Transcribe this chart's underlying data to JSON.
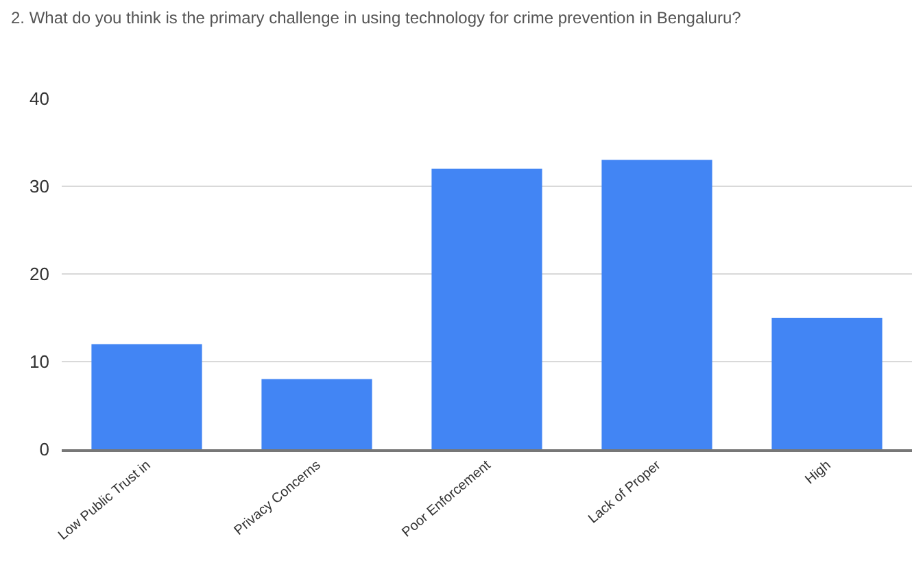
{
  "chart_data": {
    "type": "bar",
    "title": "2. What do you think is the primary challenge in using technology for crime prevention in Bengaluru?",
    "categories": [
      "Low Public Trust in",
      "Privacy Concerns",
      "Poor Enforcement",
      "Lack of Proper",
      "High"
    ],
    "values": [
      12,
      8,
      32,
      33,
      15
    ],
    "color": "#4285f4",
    "ylim": [
      0,
      40
    ],
    "yticks": [
      0,
      10,
      20,
      30,
      40
    ],
    "grid": "y"
  }
}
